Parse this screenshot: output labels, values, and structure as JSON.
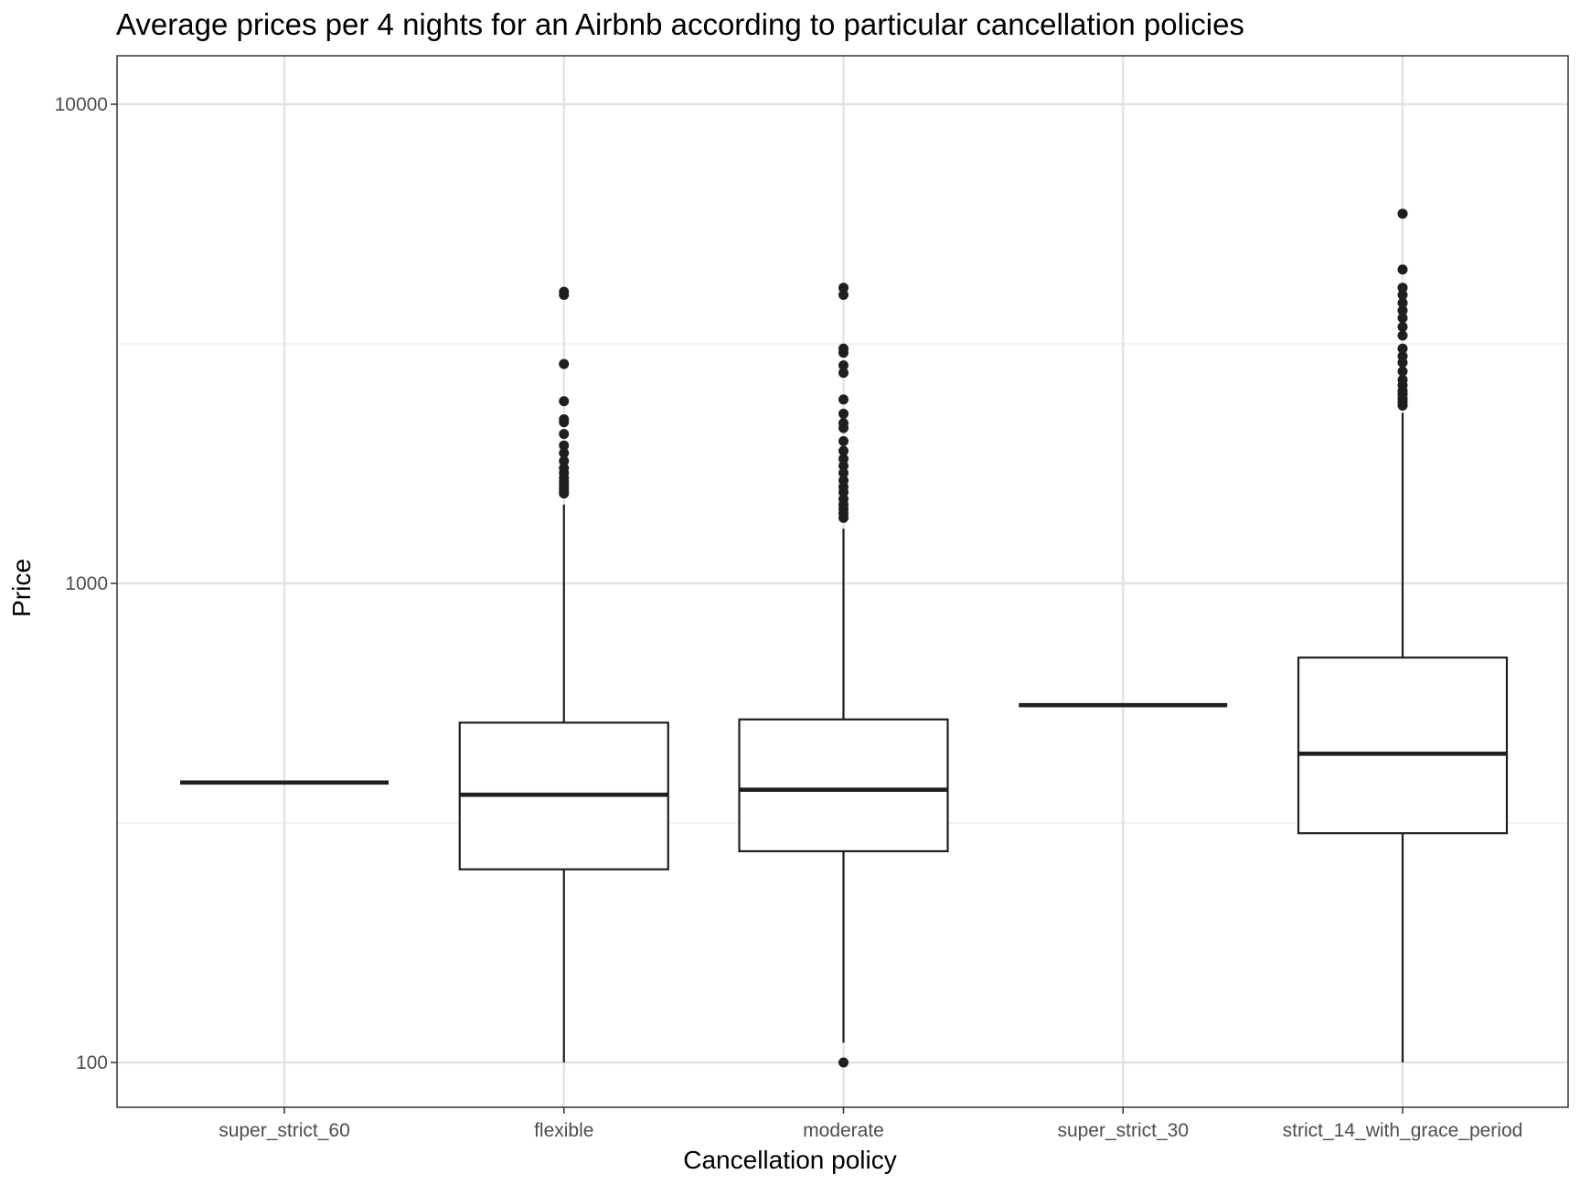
{
  "chart_data": {
    "type": "box",
    "title": "Average prices per 4 nights for an Airbnb according to particular cancellation policies",
    "xlabel": "Cancellation policy",
    "ylabel": "Price",
    "y_scale": "log10",
    "ylim": [
      80,
      12000
    ],
    "y_ticks": [
      100,
      1000,
      10000
    ],
    "y_tick_labels": [
      "100",
      "1000",
      "10000"
    ],
    "grid": true,
    "categories": [
      "super_strict_60",
      "flexible",
      "moderate",
      "super_strict_30",
      "strict_14_with_grace_period"
    ],
    "boxes": [
      {
        "category": "super_strict_60",
        "lower_whisker": 384,
        "q1": 384,
        "median": 384,
        "q3": 384,
        "upper_whisker": 384,
        "outliers": []
      },
      {
        "category": "flexible",
        "lower_whisker": 100,
        "q1": 253,
        "median": 362,
        "q3": 512,
        "upper_whisker": 1460,
        "outliers": [
          1540,
          1560,
          1580,
          1600,
          1630,
          1660,
          1700,
          1740,
          1800,
          1870,
          1940,
          2050,
          2170,
          2200,
          2400,
          2870,
          4000,
          4060
        ]
      },
      {
        "category": "moderate",
        "lower_whisker": 110,
        "q1": 276,
        "median": 371,
        "q3": 520,
        "upper_whisker": 1300,
        "outliers": [
          100,
          1370,
          1400,
          1430,
          1460,
          1500,
          1550,
          1590,
          1640,
          1700,
          1760,
          1820,
          1890,
          1980,
          2110,
          2160,
          2260,
          2420,
          2750,
          2850,
          3030,
          3090,
          4000,
          4140
        ]
      },
      {
        "category": "super_strict_30",
        "lower_whisker": 557,
        "q1": 557,
        "median": 557,
        "q3": 557,
        "upper_whisker": 557,
        "outliers": []
      },
      {
        "category": "strict_14_with_grace_period",
        "lower_whisker": 100,
        "q1": 301,
        "median": 441,
        "q3": 700,
        "upper_whisker": 2270,
        "outliers": [
          2350,
          2390,
          2430,
          2480,
          2520,
          2590,
          2660,
          2770,
          2890,
          2980,
          3090,
          3290,
          3430,
          3580,
          3710,
          3850,
          4000,
          4140,
          4520,
          5910
        ]
      }
    ]
  }
}
